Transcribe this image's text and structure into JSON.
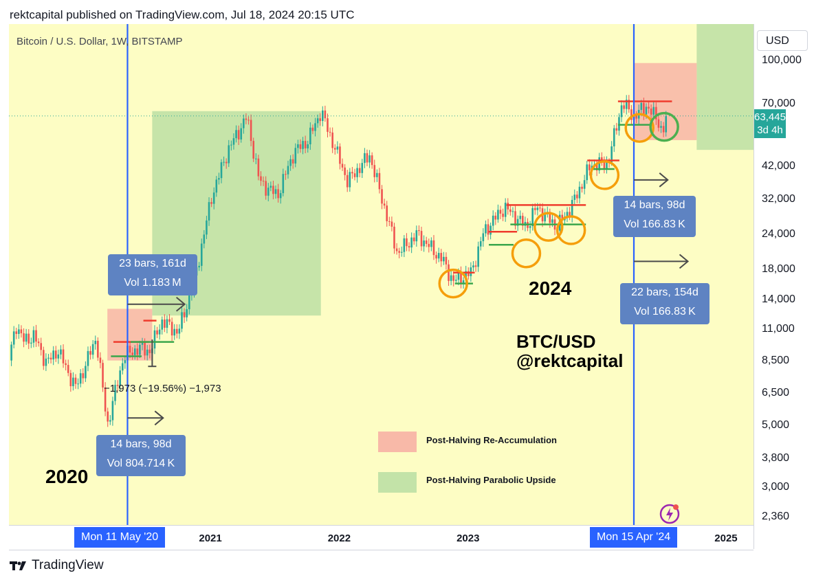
{
  "publisher": "rektcapital published on TradingView.com, Jul 18, 2024 20:15 UTC",
  "symbol": "Bitcoin / U.S. Dollar, 1W, BITSTAMP",
  "currency": "USD",
  "current_price": "63,445",
  "countdown": "3d 4h",
  "halving_labels": [
    "Mon 11 May '20",
    "Mon 15 Apr '24"
  ],
  "boxes": [
    {
      "line1": "23 bars, 161d",
      "line2": "Vol 1.183 M"
    },
    {
      "line1": "14 bars, 98d",
      "line2": "Vol 804.714 K"
    },
    {
      "line1": "14 bars, 98d",
      "line2": "Vol 166.83 K"
    },
    {
      "line1": "22 bars, 154d",
      "line2": "Vol 166.83 K"
    }
  ],
  "measure_label": "−1,973 (−19.56%) −1,973",
  "big_labels": {
    "y2020": "2020",
    "y2024": "2024",
    "pair": "BTC/USD",
    "handle": "@rektcapital"
  },
  "legend": [
    {
      "label": "Post-Halving Re-Accumulation",
      "color": "#f8b9a8"
    },
    {
      "label": "Post-Halving Parabolic Upside",
      "color": "#c3e3a8"
    }
  ],
  "footer": "TradingView",
  "colors": {
    "bg": "#fdfdc4",
    "up": "#26a69a",
    "down": "#ef5350",
    "halving": "#2962ff",
    "circle": "#f59e0b"
  },
  "chart_data": {
    "type": "candlestick",
    "title": "Bitcoin / U.S. Dollar, 1W, BITSTAMP",
    "y_scale": "log",
    "ylim": [
      2200,
      135000
    ],
    "yticks": [
      "100,000",
      "70,000",
      "42,000",
      "32,000",
      "24,000",
      "18,000",
      "14,000",
      "11,000",
      "8,500",
      "6,500",
      "5,000",
      "3,800",
      "3,000",
      "2,360"
    ],
    "ytick_values": [
      100000,
      70000,
      42000,
      32000,
      24000,
      18000,
      14000,
      11000,
      8500,
      6500,
      5000,
      3800,
      3000,
      2360
    ],
    "xticks": [
      "2021",
      "2022",
      "2023",
      "2025"
    ],
    "xtick_dates": [
      "2021-01-01",
      "2022-01-01",
      "2023-01-01",
      "2025-01-01"
    ],
    "xlim": [
      "2019-06-10",
      "2025-03-20"
    ],
    "price_path": [
      [
        "2019-06-10",
        8500
      ],
      [
        "2019-06-30",
        11500
      ],
      [
        "2019-07-20",
        10000
      ],
      [
        "2019-08-20",
        10400
      ],
      [
        "2019-09-25",
        8300
      ],
      [
        "2019-10-26",
        9300
      ],
      [
        "2019-12-15",
        6800
      ],
      [
        "2020-01-10",
        8000
      ],
      [
        "2020-02-12",
        10300
      ],
      [
        "2020-03-15",
        5000
      ],
      [
        "2020-04-30",
        8800
      ],
      [
        "2020-06-10",
        9400
      ],
      [
        "2020-07-15",
        9200
      ],
      [
        "2020-08-15",
        11800
      ],
      [
        "2020-10-01",
        10700
      ],
      [
        "2020-11-15",
        16000
      ],
      [
        "2021-01-05",
        33000
      ],
      [
        "2021-02-20",
        48000
      ],
      [
        "2021-04-14",
        63000
      ],
      [
        "2021-05-20",
        37000
      ],
      [
        "2021-07-10",
        33000
      ],
      [
        "2021-08-25",
        47000
      ],
      [
        "2021-10-05",
        52000
      ],
      [
        "2021-11-10",
        66000
      ],
      [
        "2022-01-25",
        37000
      ],
      [
        "2022-03-28",
        46000
      ],
      [
        "2022-06-15",
        20500
      ],
      [
        "2022-08-10",
        24000
      ],
      [
        "2022-10-20",
        19500
      ],
      [
        "2022-11-20",
        16300
      ],
      [
        "2023-01-10",
        17500
      ],
      [
        "2023-02-15",
        24500
      ],
      [
        "2023-04-14",
        30000
      ],
      [
        "2023-06-15",
        25500
      ],
      [
        "2023-07-15",
        30000
      ],
      [
        "2023-09-10",
        25500
      ],
      [
        "2023-10-20",
        30000
      ],
      [
        "2023-12-15",
        42500
      ],
      [
        "2024-02-01",
        43000
      ],
      [
        "2024-03-13",
        71000
      ],
      [
        "2024-04-15",
        63000
      ],
      [
        "2024-05-20",
        69000
      ],
      [
        "2024-06-25",
        60500
      ],
      [
        "2024-07-05",
        55000
      ],
      [
        "2024-07-18",
        63445
      ]
    ],
    "annotations": {
      "halving_dates": [
        "2020-05-11",
        "2024-04-15"
      ],
      "reaccumulation_zones": [
        {
          "x": [
            "2020-03-15",
            "2020-07-20"
          ],
          "y": [
            8500,
            13000
          ]
        },
        {
          "x": [
            "2024-04-15",
            "2024-10-10"
          ],
          "y": [
            52000,
            98000
          ]
        }
      ],
      "parabolic_zones": [
        {
          "x": [
            "2020-07-20",
            "2021-11-10"
          ],
          "y": [
            12300,
            66000
          ]
        },
        {
          "x": [
            "2024-10-10",
            "2025-03-20"
          ],
          "y": [
            48000,
            135000
          ]
        }
      ],
      "circles": [
        [
          "2022-11-20",
          16000
        ],
        [
          "2023-06-15",
          20500
        ],
        [
          "2023-08-17",
          25500
        ],
        [
          "2023-10-20",
          24800
        ],
        [
          "2024-01-23",
          39000
        ],
        [
          "2024-05-01",
          57500
        ],
        [
          "2024-07-10",
          58000
        ]
      ]
    }
  }
}
